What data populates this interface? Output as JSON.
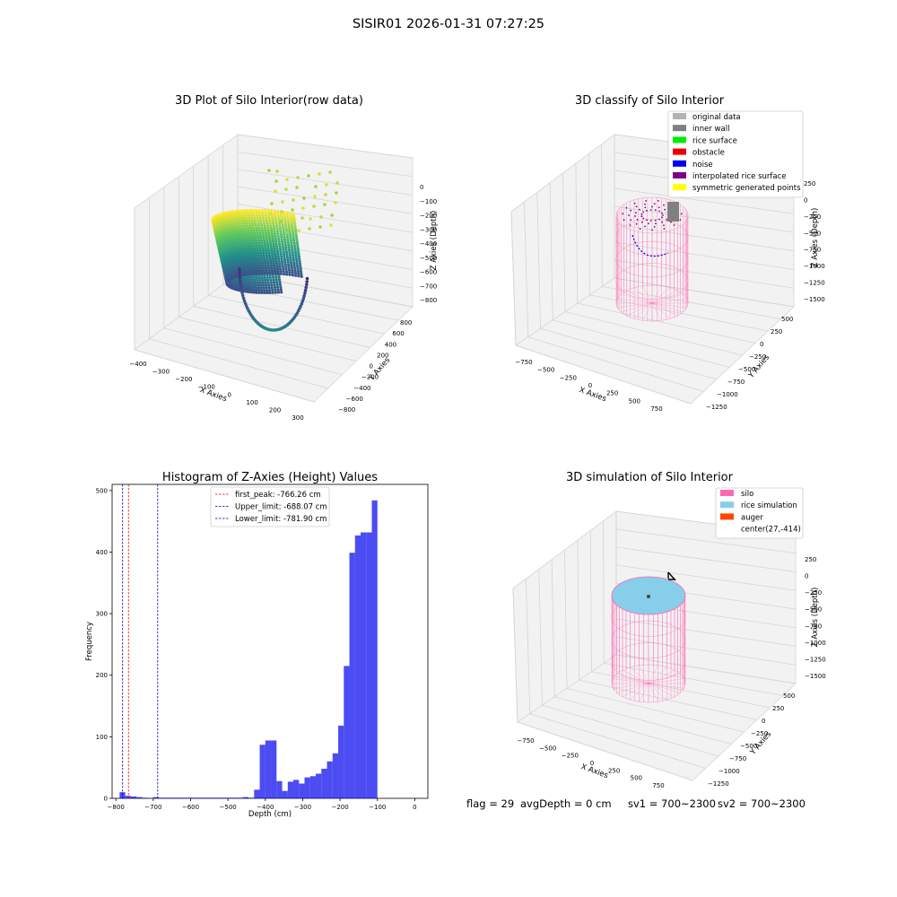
{
  "figure": {
    "suptitle": "SISIR01 2026-01-31 07:27:25",
    "status": {
      "flag": "flag = 29",
      "avg_depth": "avgDepth = 0 cm",
      "sv1": "sv1 = 700~2300",
      "sv2": "sv2 = 700~2300"
    }
  },
  "panel_raw": {
    "title": "3D Plot of Silo Interior(row data)",
    "xlabel": "X Axies",
    "ylabel": "Y Axies",
    "zlabel": "Z Axies (Depth)",
    "xticks": [
      "−400",
      "−300",
      "−200",
      "−100",
      "0",
      "100",
      "200",
      "300"
    ],
    "yticks": [
      "−800",
      "−600",
      "−400",
      "−200",
      "0",
      "200",
      "400",
      "600",
      "800"
    ],
    "zticks": [
      "0",
      "−100",
      "−200",
      "−300",
      "−400",
      "−500",
      "−600",
      "−700",
      "−800"
    ],
    "colormap": [
      "#440154",
      "#3b528b",
      "#21918c",
      "#5ec962",
      "#fde725"
    ]
  },
  "panel_classify": {
    "title": "3D classify of Silo Interior",
    "xlabel": "X Axies",
    "ylabel": "Y Axies",
    "zlabel": "Z Axies (Depth)",
    "xticks": [
      "−750",
      "−500",
      "−250",
      "0",
      "250",
      "500",
      "750"
    ],
    "yticks": [
      "−1250",
      "−1000",
      "−750",
      "−500",
      "−250",
      "0",
      "250",
      "500"
    ],
    "zticks": [
      "250",
      "0",
      "−250",
      "−500",
      "−750",
      "−1000",
      "−1250",
      "−1500"
    ],
    "legend": [
      {
        "label": "original data",
        "color": "#b3b3b3"
      },
      {
        "label": "inner wall",
        "color": "#808080"
      },
      {
        "label": "rice surface",
        "color": "#00ee00"
      },
      {
        "label": "obstacle",
        "color": "#ee0000"
      },
      {
        "label": "noise",
        "color": "#0000ee"
      },
      {
        "label": "interpolated rice surface",
        "color": "#800080"
      },
      {
        "label": "symmetric generated points",
        "color": "#ffff00"
      }
    ]
  },
  "panel_sim": {
    "title": "3D simulation of Silo Interior",
    "xlabel": "X Axies",
    "ylabel": "Y Axies",
    "zlabel": "Z Axies (Depth)",
    "xticks": [
      "−750",
      "−500",
      "−250",
      "0",
      "250",
      "500",
      "750"
    ],
    "yticks": [
      "−1250",
      "−1000",
      "−750",
      "−500",
      "−250",
      "0",
      "250",
      "500"
    ],
    "zticks": [
      "250",
      "0",
      "−250",
      "−500",
      "−750",
      "−1000",
      "−1250",
      "−1500"
    ],
    "legend": [
      {
        "label": "silo",
        "color": "#ff69b4"
      },
      {
        "label": "rice simulation",
        "color": "#87ceeb"
      },
      {
        "label": "auger",
        "color": "#ff4500"
      },
      {
        "label": "center(27,-414)",
        "color": "none"
      }
    ]
  },
  "chart_data": [
    {
      "type": "scatter",
      "title": "3D Plot of Silo Interior(row data)",
      "xlabel": "X Axies",
      "ylabel": "Y Axies",
      "zlabel": "Z Axies (Depth)",
      "xlim": [
        -450,
        300
      ],
      "ylim": [
        -850,
        850
      ],
      "zlim": [
        -850,
        50
      ]
    },
    {
      "type": "scatter",
      "title": "3D classify of Silo Interior",
      "xlabel": "X Axies",
      "ylabel": "Y Axies",
      "zlabel": "Z Axies (Depth)",
      "xlim": [
        -900,
        900
      ],
      "ylim": [
        -1400,
        600
      ],
      "zlim": [
        -1600,
        300
      ]
    },
    {
      "type": "bar",
      "title": "Histogram of Z-Axies (Height) Values",
      "xlabel": "Depth (cm)",
      "ylabel": "Frequency",
      "xlim": [
        -810,
        35
      ],
      "ylim": [
        0,
        510
      ],
      "xticks": [
        "−800",
        "−700",
        "−600",
        "−500",
        "−400",
        "−300",
        "−200",
        "−100",
        "0"
      ],
      "yticks": [
        "0",
        "100",
        "200",
        "300",
        "400",
        "500"
      ],
      "bin_start": -790,
      "bin_width": 15,
      "values": [
        10,
        4,
        3,
        2,
        1,
        0,
        2,
        1,
        1,
        1,
        1,
        1,
        1,
        1,
        1,
        1,
        1,
        1,
        1,
        1,
        1,
        1,
        2,
        1,
        14,
        87,
        94,
        94,
        28,
        12,
        27,
        30,
        24,
        34,
        36,
        40,
        48,
        60,
        73,
        118,
        215,
        399,
        427,
        432,
        432,
        484
      ],
      "bar_color": "#0000ee",
      "lines": [
        {
          "label": "first_peak: -766.26 cm",
          "x": -766.26,
          "color": "#ee0000"
        },
        {
          "label": "Upper_limit: -688.07 cm",
          "x": -688.07,
          "color": "#0000aa"
        },
        {
          "label": "Lower_limit: -781.90 cm",
          "x": -781.9,
          "color": "#0000aa"
        }
      ]
    },
    {
      "type": "scatter",
      "title": "3D simulation of Silo Interior",
      "xlabel": "X Axies",
      "ylabel": "Y Axies",
      "zlabel": "Z Axies (Depth)",
      "xlim": [
        -900,
        900
      ],
      "ylim": [
        -1400,
        600
      ],
      "zlim": [
        -1600,
        300
      ]
    }
  ]
}
